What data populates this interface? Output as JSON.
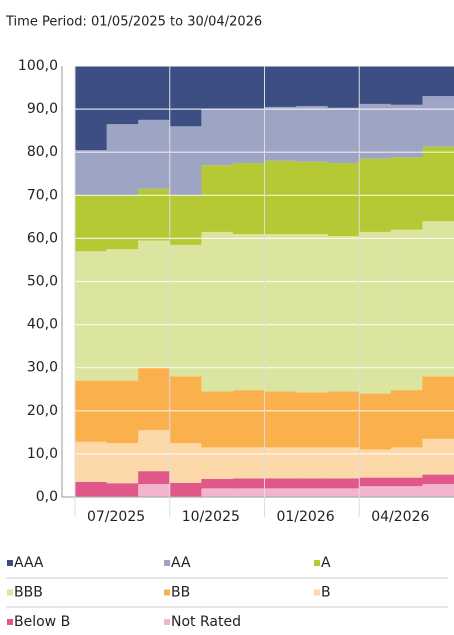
{
  "chart_data": {
    "type": "stacked_area_step",
    "title": "Time Period: 01/05/2025 to 30/04/2026",
    "categories": [
      null,
      null,
      "07/2025",
      null,
      null,
      "10/2025",
      null,
      null,
      "01/2026",
      null,
      null,
      "04/2026"
    ],
    "series": [
      {
        "name": "AAA",
        "color": "#3d4f82",
        "values": [
          19.5,
          13.5,
          12.5,
          14,
          10,
          10,
          9.5,
          9.3,
          9.7,
          8.8,
          9,
          7
        ]
      },
      {
        "name": "AA",
        "color": "#9ea4c4",
        "values": [
          10.5,
          16.5,
          16,
          16,
          13,
          12.5,
          12.5,
          12.9,
          12.8,
          12.7,
          12.2,
          11.7
        ]
      },
      {
        "name": "A",
        "color": "#b5c935",
        "values": [
          13,
          12.5,
          12,
          11.5,
          15.5,
          16.5,
          17,
          16.8,
          17,
          17,
          16.8,
          17.3
        ]
      },
      {
        "name": "BBB",
        "color": "#dbe5a0",
        "values": [
          30,
          30.5,
          29.5,
          30.5,
          37,
          36.2,
          36.5,
          36.7,
          36,
          37.5,
          37.2,
          36
        ]
      },
      {
        "name": "BB",
        "color": "#fbb04e",
        "values": [
          14.2,
          14.5,
          14.5,
          15.5,
          13,
          13.3,
          13,
          12.8,
          13,
          13,
          13.3,
          14.5
        ]
      },
      {
        "name": "B",
        "color": "#fdd8a8",
        "values": [
          9.3,
          9.3,
          9.5,
          9.2,
          7.3,
          7.2,
          7.2,
          7.2,
          7.2,
          6.5,
          7,
          8.3
        ]
      },
      {
        "name": "Below B",
        "color": "#e0588a",
        "values": [
          3.5,
          3.2,
          3,
          3.3,
          2.2,
          2.3,
          2.3,
          2.3,
          2.3,
          2,
          2,
          2.2
        ]
      },
      {
        "name": "Not Rated",
        "color": "#f3b5cc",
        "values": [
          0,
          0,
          3,
          0,
          2,
          2,
          2,
          2,
          2,
          2.5,
          2.5,
          3
        ]
      }
    ],
    "ylim": [
      0,
      100
    ],
    "yticks": [
      {
        "value": 0,
        "label": "0,0"
      },
      {
        "value": 10,
        "label": "10,0"
      },
      {
        "value": 20,
        "label": "20,0"
      },
      {
        "value": 30,
        "label": "30,0"
      },
      {
        "value": 40,
        "label": "40,0"
      },
      {
        "value": 50,
        "label": "50,0"
      },
      {
        "value": 60,
        "label": "60,0"
      },
      {
        "value": 70,
        "label": "70,0"
      },
      {
        "value": 80,
        "label": "80,0"
      },
      {
        "value": 90,
        "label": "90,0"
      },
      {
        "value": 100,
        "label": {
          "value": 100,
          "label": "100,0"
        }
      }
    ],
    "grid": true
  }
}
